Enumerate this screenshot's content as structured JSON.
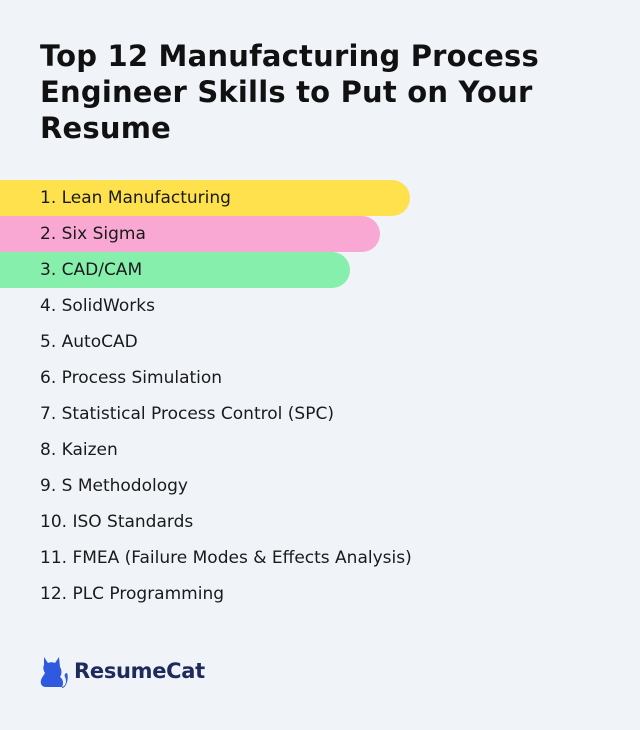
{
  "title": "Top 12 Manufacturing Process Engineer Skills to Put on Your Resume",
  "skills": [
    {
      "label": "1. Lean Manufacturing",
      "highlight": "#ffe14d"
    },
    {
      "label": "2. Six Sigma",
      "highlight": "#f9a8d4"
    },
    {
      "label": "3. CAD/CAM",
      "highlight": "#86efac"
    },
    {
      "label": "4. SolidWorks"
    },
    {
      "label": "5. AutoCAD"
    },
    {
      "label": "6. Process Simulation"
    },
    {
      "label": "7. Statistical Process Control (SPC)"
    },
    {
      "label": "8. Kaizen"
    },
    {
      "label": "9. S Methodology"
    },
    {
      "label": "10. ISO Standards"
    },
    {
      "label": "11. FMEA (Failure Modes & Effects Analysis)"
    },
    {
      "label": "12. PLC Programming"
    }
  ],
  "brand": {
    "name": "ResumeCat",
    "icon": "cat-icon",
    "color": "#2f5ae0"
  }
}
